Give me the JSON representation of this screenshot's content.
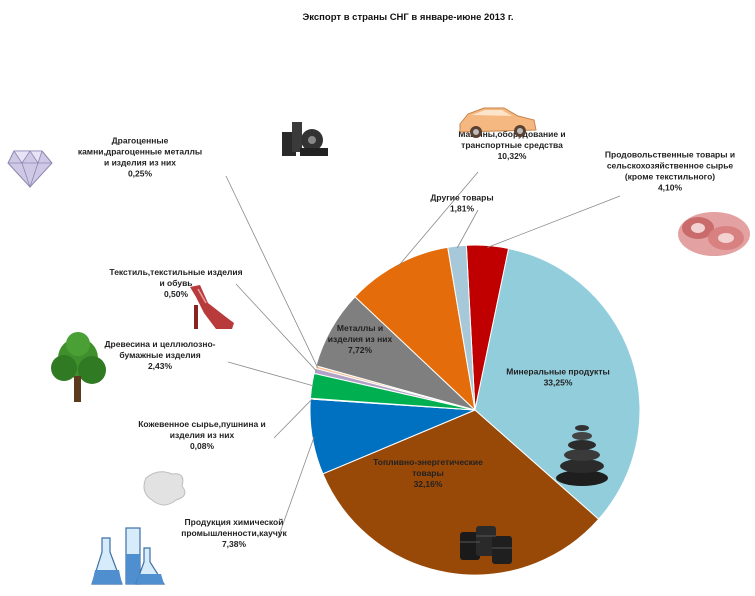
{
  "chart_data": {
    "type": "pie",
    "title": "Экспорт в страны СНГ в январе-июне 2013 г.",
    "slices": [
      {
        "name": "Продовольственные товары и сельскохозяйственное сырье (кроме текстильного)",
        "label_lines": [
          "Продовольственные товары и",
          "сельскохозяйственное сырье",
          "(кроме текстильного)"
        ],
        "value_label": "4,10%",
        "value": 4.1,
        "color": "#c00000"
      },
      {
        "name": "Минеральные продукты",
        "label_lines": [
          "Минеральные продукты"
        ],
        "value_label": "33,25%",
        "value": 33.25,
        "color": "#92cddc"
      },
      {
        "name": "Топливно-энергетические товары",
        "label_lines": [
          "Топливно-энергетические",
          "товары"
        ],
        "value_label": "32,16%",
        "value": 32.16,
        "color": "#984807"
      },
      {
        "name": "Продукция химической промышленности,каучук",
        "label_lines": [
          "Продукция химической",
          "промышленности,каучук"
        ],
        "value_label": "7,38%",
        "value": 7.38,
        "color": "#0070c0"
      },
      {
        "name": "Кожевенное сырье,пушнина и изделия из них",
        "label_lines": [
          "Кожевенное сырье,пушнина и",
          "изделия из них"
        ],
        "value_label": "0,08%",
        "value": 0.08,
        "color": "#4a7ebb"
      },
      {
        "name": "Древесина и целлюлозно-бумажные изделия",
        "label_lines": [
          "Древесина и целлюлозно-",
          "бумажные изделия"
        ],
        "value_label": "2,43%",
        "value": 2.43,
        "color": "#00b050"
      },
      {
        "name": "Текстиль,текстильные изделия и обувь",
        "label_lines": [
          "Текстиль,текстильные изделия",
          "и обувь"
        ],
        "value_label": "0,50%",
        "value": 0.5,
        "color": "#b3a2c7"
      },
      {
        "name": "Драгоценные камни,драгоценные металлы и изделия из них",
        "label_lines": [
          "Драгоценные",
          "камни,драгоценные металлы",
          "и изделия из них"
        ],
        "value_label": "0,25%",
        "value": 0.25,
        "color": "#fac090"
      },
      {
        "name": "Металлы и изделия из них",
        "label_lines": [
          "Металлы и",
          "изделия из них"
        ],
        "value_label": "7,72%",
        "value": 7.72,
        "color": "#7f7f7f"
      },
      {
        "name": "Машины,оборудование и транспортные средства",
        "label_lines": [
          "Машины,оборудование и",
          "транспортные средства"
        ],
        "value_label": "10,32%",
        "value": 10.32,
        "color": "#e46c0a"
      },
      {
        "name": "Другие товары",
        "label_lines": [
          "Другие товары"
        ],
        "value_label": "1,81%",
        "value": 1.81,
        "color": "#a6c8d8"
      }
    ]
  },
  "icons": [
    "gem-icon",
    "bolts-icon",
    "car-icon",
    "meat-icon",
    "shoe-icon",
    "tree-icon",
    "fur-icon",
    "flasks-icon",
    "stones-icon",
    "barrels-icon"
  ]
}
